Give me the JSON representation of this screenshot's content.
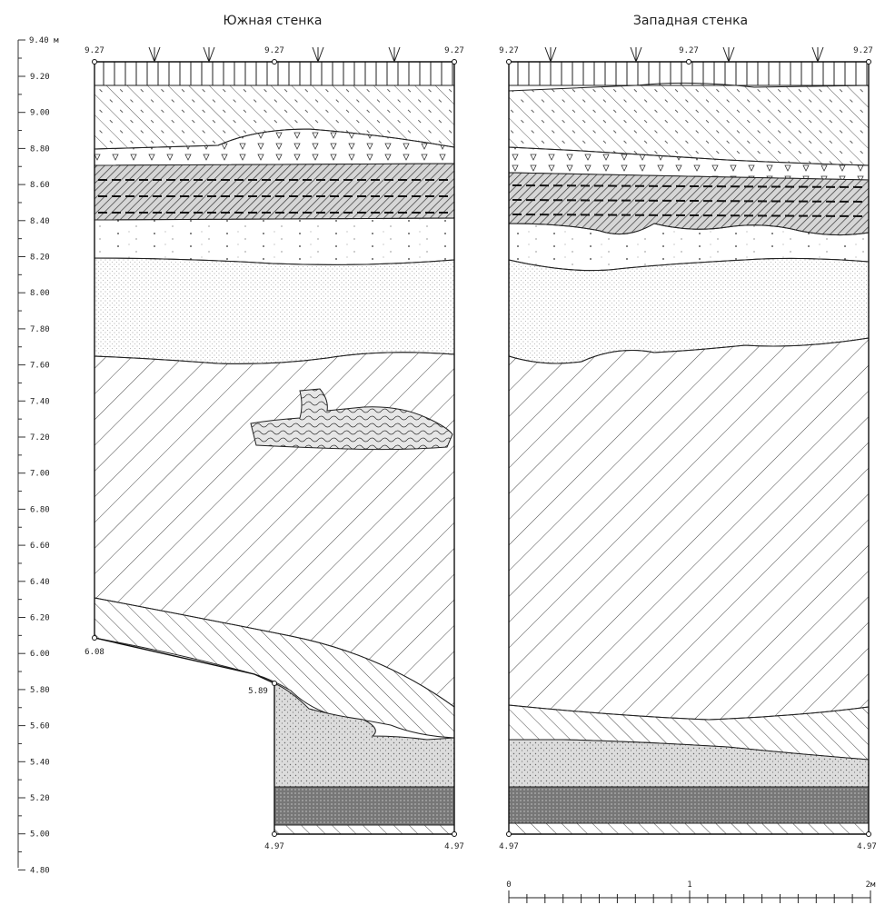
{
  "titles": {
    "south": "Южная стенка",
    "west": "Западная стенка"
  },
  "scale": {
    "top_label": "9.40 м",
    "ticks": [
      "9.20",
      "9.00",
      "8.80",
      "8.60",
      "8.40",
      "8.20",
      "8.00",
      "7.80",
      "7.60",
      "7.40",
      "7.20",
      "7.00",
      "6.80",
      "6.60",
      "6.40",
      "6.20",
      "6.00",
      "5.80",
      "5.60",
      "5.40",
      "5.20",
      "5.00",
      "4.80"
    ]
  },
  "south_wall": {
    "top_marks": [
      "9.27",
      "9.27",
      "9.27"
    ],
    "left_bottom": "6.08",
    "step_mark": "5.89",
    "bottom_marks": [
      "4.97",
      "4.97"
    ]
  },
  "west_wall": {
    "top_marks": [
      "9.27",
      "9.27",
      "9.27"
    ],
    "bottom_marks": [
      "4.97",
      "4.97"
    ]
  },
  "bar_scale": {
    "labels": [
      "0",
      "1",
      "2м"
    ]
  },
  "colors": {
    "line": "#222222",
    "dark": "#555555",
    "mid": "#8a8a8a",
    "light": "#bdbdbd"
  }
}
